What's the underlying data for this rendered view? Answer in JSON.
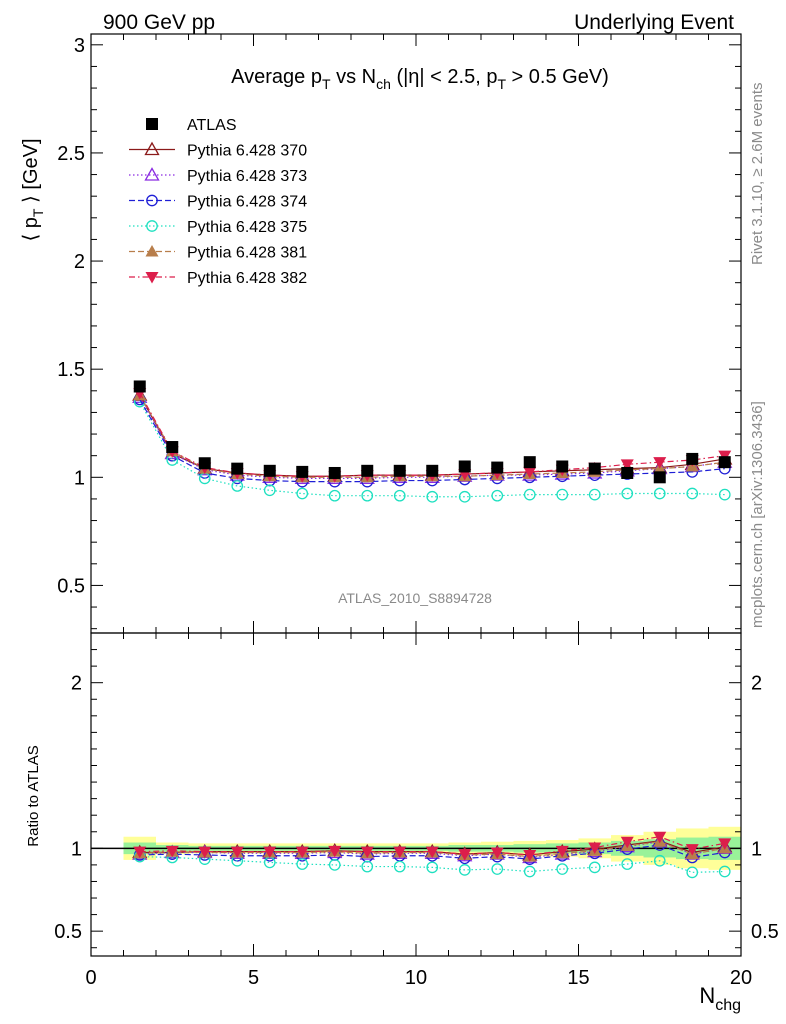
{
  "header": {
    "left": "900 GeV pp",
    "right": "Underlying Event"
  },
  "side": {
    "rivet": "Rivet 3.1.10, ≥ 2.6M events",
    "mcplots": "mcplots.cern.ch [arXiv:1306.3436]"
  },
  "watermark": "ATLAS_2010_S8894728",
  "chart_data": [
    {
      "type": "scatter",
      "title": "Average p_T vs N_ch (|η| < 2.5, p_T > 0.5 GeV)",
      "ylabel": "⟨ p_T ⟩ [GeV]",
      "xlim": [
        0,
        20
      ],
      "ylim": [
        0.28,
        3.05
      ],
      "y_ticks": [
        0.5,
        1,
        1.5,
        2,
        2.5,
        3
      ],
      "y_tick_labels": [
        "0.5",
        "1",
        "1.5",
        "2",
        "2.5",
        "3"
      ],
      "legend_position": "top-left",
      "x": [
        1.5,
        2.5,
        3.5,
        4.5,
        5.5,
        6.5,
        7.5,
        8.5,
        9.5,
        10.5,
        11.5,
        12.5,
        13.5,
        14.5,
        15.5,
        16.5,
        17.5,
        18.5,
        19.5
      ],
      "series": [
        {
          "name": "ATLAS",
          "color": "#000000",
          "marker": "square",
          "line": "none",
          "values": [
            1.42,
            1.14,
            1.065,
            1.04,
            1.03,
            1.025,
            1.02,
            1.03,
            1.03,
            1.03,
            1.05,
            1.045,
            1.07,
            1.05,
            1.04,
            1.02,
            1.0,
            1.085,
            1.07
          ]
        },
        {
          "name": "Pythia 6.428 370",
          "color": "#8b1a1a",
          "marker": "triangle-open",
          "line": "solid",
          "values": [
            1.38,
            1.11,
            1.04,
            1.02,
            1.01,
            1.005,
            1.005,
            1.01,
            1.01,
            1.01,
            1.015,
            1.02,
            1.025,
            1.03,
            1.035,
            1.04,
            1.045,
            1.06,
            1.085
          ]
        },
        {
          "name": "Pythia 6.428 373",
          "color": "#8a2be2",
          "marker": "triangle-open",
          "line": "dotted",
          "values": [
            1.37,
            1.11,
            1.035,
            1.01,
            1.0,
            0.995,
            0.995,
            0.995,
            1.0,
            1.0,
            1.005,
            1.01,
            1.01,
            1.015,
            1.02,
            1.03,
            1.04,
            1.05,
            1.07
          ]
        },
        {
          "name": "Pythia 6.428 374",
          "color": "#1f1fd6",
          "marker": "circle-open",
          "line": "dashed",
          "values": [
            1.36,
            1.1,
            1.02,
            0.995,
            0.985,
            0.98,
            0.98,
            0.98,
            0.985,
            0.985,
            0.99,
            0.995,
            1.0,
            1.005,
            1.01,
            1.015,
            1.02,
            1.025,
            1.04
          ]
        },
        {
          "name": "Pythia 6.428 375",
          "color": "#1ee0c0",
          "marker": "circle-open",
          "line": "dotted",
          "values": [
            1.35,
            1.08,
            0.995,
            0.96,
            0.94,
            0.925,
            0.915,
            0.915,
            0.915,
            0.91,
            0.91,
            0.915,
            0.92,
            0.92,
            0.92,
            0.925,
            0.925,
            0.925,
            0.92
          ]
        },
        {
          "name": "Pythia 6.428 381",
          "color": "#b87e4b",
          "marker": "triangle-filled",
          "line": "dashed",
          "values": [
            1.38,
            1.12,
            1.04,
            1.015,
            1.005,
            1.0,
            1.0,
            1.0,
            1.005,
            1.005,
            1.005,
            1.01,
            1.015,
            1.02,
            1.025,
            1.035,
            1.04,
            1.05,
            1.07
          ]
        },
        {
          "name": "Pythia 6.428 382",
          "color": "#dc1e4b",
          "marker": "triangle-down-filled",
          "line": "dashdot",
          "values": [
            1.39,
            1.12,
            1.045,
            1.02,
            1.01,
            1.005,
            1.005,
            1.01,
            1.01,
            1.01,
            1.015,
            1.02,
            1.025,
            1.035,
            1.045,
            1.06,
            1.07,
            1.08,
            1.1
          ]
        }
      ]
    },
    {
      "type": "scatter",
      "ylabel": "Ratio to ATLAS",
      "xlabel": "N_chg",
      "xlim": [
        0,
        20
      ],
      "ylim": [
        0.35,
        2.3
      ],
      "x_ticks": [
        0,
        5,
        10,
        15,
        20
      ],
      "x_tick_labels": [
        "0",
        "5",
        "10",
        "15",
        "20"
      ],
      "y_ticks": [
        0.5,
        1,
        2
      ],
      "y_tick_labels": [
        "0.5",
        "1",
        "2"
      ],
      "reference_line": 1,
      "x_edges": [
        1,
        2,
        3,
        4,
        5,
        6,
        7,
        8,
        9,
        10,
        11,
        12,
        13,
        14,
        15,
        16,
        17,
        18,
        19,
        20
      ],
      "band_yellow_halfwidth": [
        0.07,
        0.035,
        0.03,
        0.03,
        0.03,
        0.03,
        0.03,
        0.03,
        0.03,
        0.03,
        0.035,
        0.04,
        0.045,
        0.05,
        0.06,
        0.08,
        0.1,
        0.12,
        0.13
      ],
      "band_green_halfwidth": [
        0.035,
        0.02,
        0.015,
        0.015,
        0.015,
        0.015,
        0.015,
        0.015,
        0.015,
        0.015,
        0.02,
        0.02,
        0.025,
        0.03,
        0.035,
        0.045,
        0.055,
        0.065,
        0.07
      ],
      "x": [
        1.5,
        2.5,
        3.5,
        4.5,
        5.5,
        6.5,
        7.5,
        8.5,
        9.5,
        10.5,
        11.5,
        12.5,
        13.5,
        14.5,
        15.5,
        16.5,
        17.5,
        18.5,
        19.5
      ],
      "series": [
        {
          "name": "Pythia 6.428 370",
          "values": [
            0.975,
            0.975,
            0.98,
            0.98,
            0.98,
            0.98,
            0.985,
            0.98,
            0.98,
            0.98,
            0.965,
            0.975,
            0.96,
            0.98,
            0.995,
            1.02,
            1.045,
            0.975,
            1.01
          ]
        },
        {
          "name": "Pythia 6.428 373",
          "values": [
            0.965,
            0.975,
            0.975,
            0.97,
            0.97,
            0.97,
            0.975,
            0.965,
            0.97,
            0.97,
            0.955,
            0.965,
            0.945,
            0.965,
            0.98,
            1.01,
            1.04,
            0.965,
            1.0
          ]
        },
        {
          "name": "Pythia 6.428 374",
          "values": [
            0.96,
            0.965,
            0.96,
            0.955,
            0.955,
            0.955,
            0.96,
            0.95,
            0.955,
            0.955,
            0.94,
            0.95,
            0.935,
            0.955,
            0.97,
            0.995,
            1.02,
            0.945,
            0.975
          ]
        },
        {
          "name": "Pythia 6.428 375",
          "values": [
            0.95,
            0.945,
            0.935,
            0.925,
            0.915,
            0.905,
            0.9,
            0.89,
            0.89,
            0.885,
            0.87,
            0.875,
            0.86,
            0.875,
            0.885,
            0.905,
            0.925,
            0.855,
            0.86
          ]
        },
        {
          "name": "Pythia 6.428 381",
          "values": [
            0.97,
            0.98,
            0.975,
            0.975,
            0.975,
            0.975,
            0.98,
            0.97,
            0.975,
            0.975,
            0.96,
            0.965,
            0.95,
            0.97,
            0.985,
            1.015,
            1.04,
            0.965,
            1.0
          ]
        },
        {
          "name": "Pythia 6.428 382",
          "values": [
            0.98,
            0.985,
            0.98,
            0.98,
            0.98,
            0.98,
            0.985,
            0.98,
            0.98,
            0.98,
            0.965,
            0.975,
            0.96,
            0.985,
            1.005,
            1.04,
            1.07,
            0.995,
            1.03
          ]
        }
      ]
    }
  ]
}
